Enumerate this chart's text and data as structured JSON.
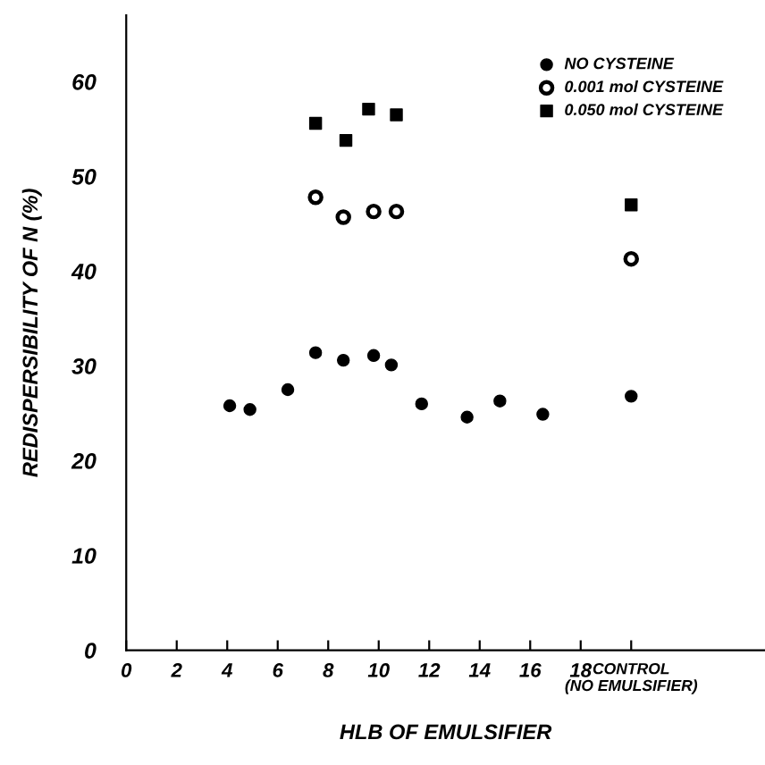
{
  "chart_data": {
    "type": "scatter",
    "xlabel": "HLB OF EMULSIFIER",
    "ylabel": "REDISPERSIBILITY OF N (%)",
    "xlim": [
      0,
      25.3
    ],
    "ylim": [
      0,
      67
    ],
    "xticks": [
      0,
      2,
      4,
      6,
      8,
      10,
      12,
      14,
      16,
      18,
      {
        "value": 20,
        "label": "CONTROL\n(NO EMULSIFIER)"
      }
    ],
    "yticks": [
      0,
      10,
      20,
      30,
      40,
      50,
      60
    ],
    "grid": false,
    "legend": "top right",
    "series": [
      {
        "name": "NO CYSTEINE",
        "color": "#000000",
        "marker": "circle",
        "x": [
          4.1,
          4.9,
          6.4,
          7.5,
          8.6,
          9.8,
          10.5,
          11.7,
          13.5,
          14.8,
          16.5,
          20
        ],
        "values": [
          25.8,
          25.4,
          27.5,
          31.4,
          30.6,
          31.1,
          30.1,
          26.0,
          24.6,
          26.3,
          24.9,
          26.8
        ]
      },
      {
        "name": "0.001 mol CYSTEINE",
        "color": "#000000",
        "marker": "circle-open",
        "x": [
          7.5,
          8.6,
          9.8,
          10.7,
          20
        ],
        "values": [
          47.8,
          45.7,
          46.3,
          46.3,
          41.3
        ]
      },
      {
        "name": "0.050 mol CYSTEINE",
        "color": "#000000",
        "marker": "square",
        "x": [
          7.5,
          8.7,
          9.6,
          10.7,
          20
        ],
        "values": [
          55.6,
          53.8,
          57.1,
          56.5,
          47.0
        ]
      }
    ]
  }
}
